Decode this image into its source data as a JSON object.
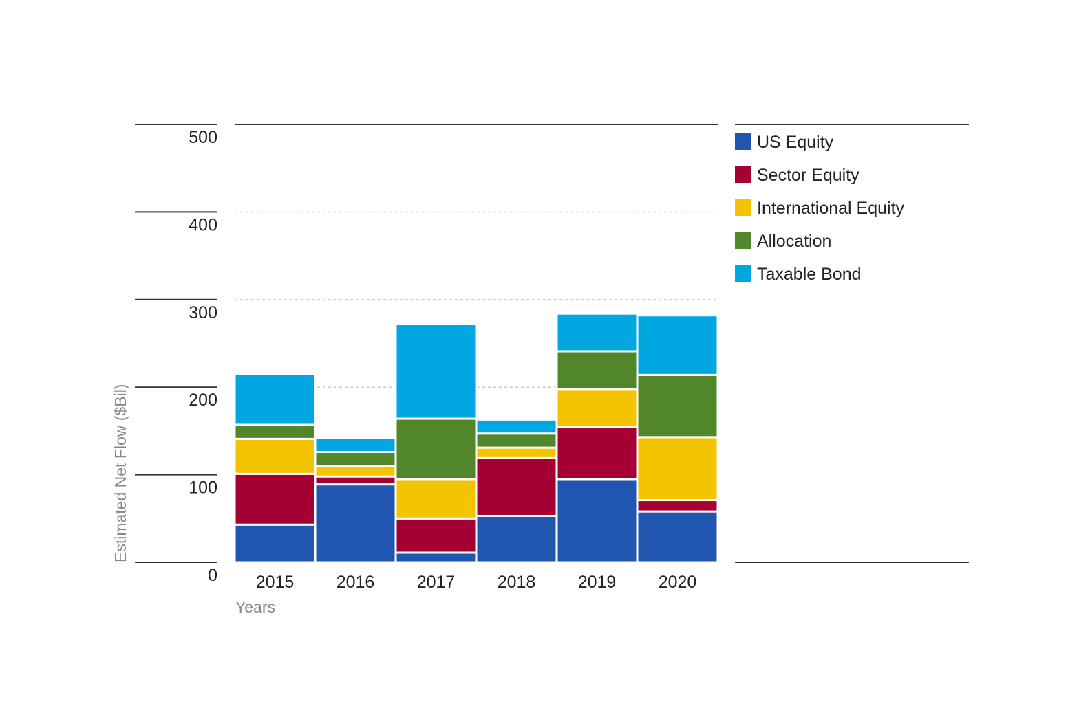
{
  "chart_data": {
    "type": "bar",
    "stacked": true,
    "title": "",
    "xlabel": "Years",
    "ylabel": "Estimated Net Flow ($Bil)",
    "ylim": [
      0,
      500
    ],
    "yticks": [
      0,
      100,
      200,
      300,
      400,
      500
    ],
    "legend_position": "right",
    "categories": [
      "2015",
      "2016",
      "2017",
      "2018",
      "2019",
      "2020"
    ],
    "series": [
      {
        "name": "US Equity",
        "color": "#2156b0",
        "values": [
          43,
          89,
          11,
          53,
          95,
          58
        ]
      },
      {
        "name": "Sector Equity",
        "color": "#a50034",
        "values": [
          58,
          9,
          39,
          66,
          60,
          13
        ]
      },
      {
        "name": "International Equity",
        "color": "#f5c400",
        "values": [
          40,
          12,
          45,
          12,
          43,
          72
        ]
      },
      {
        "name": "Allocation",
        "color": "#52862a",
        "values": [
          16,
          16,
          69,
          16,
          43,
          71
        ]
      },
      {
        "name": "Taxable Bond",
        "color": "#00a7e1",
        "values": [
          58,
          16,
          108,
          16,
          43,
          68
        ]
      }
    ]
  }
}
